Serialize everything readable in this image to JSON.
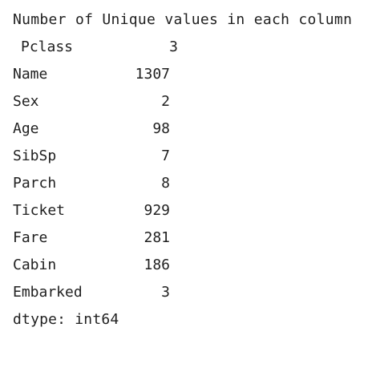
{
  "output": {
    "header": "Number of Unique values in each column",
    "rows": [
      {
        "name": "Pclass",
        "value": "3"
      },
      {
        "name": "Name",
        "value": "1307"
      },
      {
        "name": "Sex",
        "value": "2"
      },
      {
        "name": "Age",
        "value": "98"
      },
      {
        "name": "SibSp",
        "value": "7"
      },
      {
        "name": "Parch",
        "value": "8"
      },
      {
        "name": "Ticket",
        "value": "929"
      },
      {
        "name": "Fare",
        "value": "281"
      },
      {
        "name": "Cabin",
        "value": "186"
      },
      {
        "name": "Embarked",
        "value": "3"
      }
    ],
    "dtype": "dtype: int64"
  }
}
